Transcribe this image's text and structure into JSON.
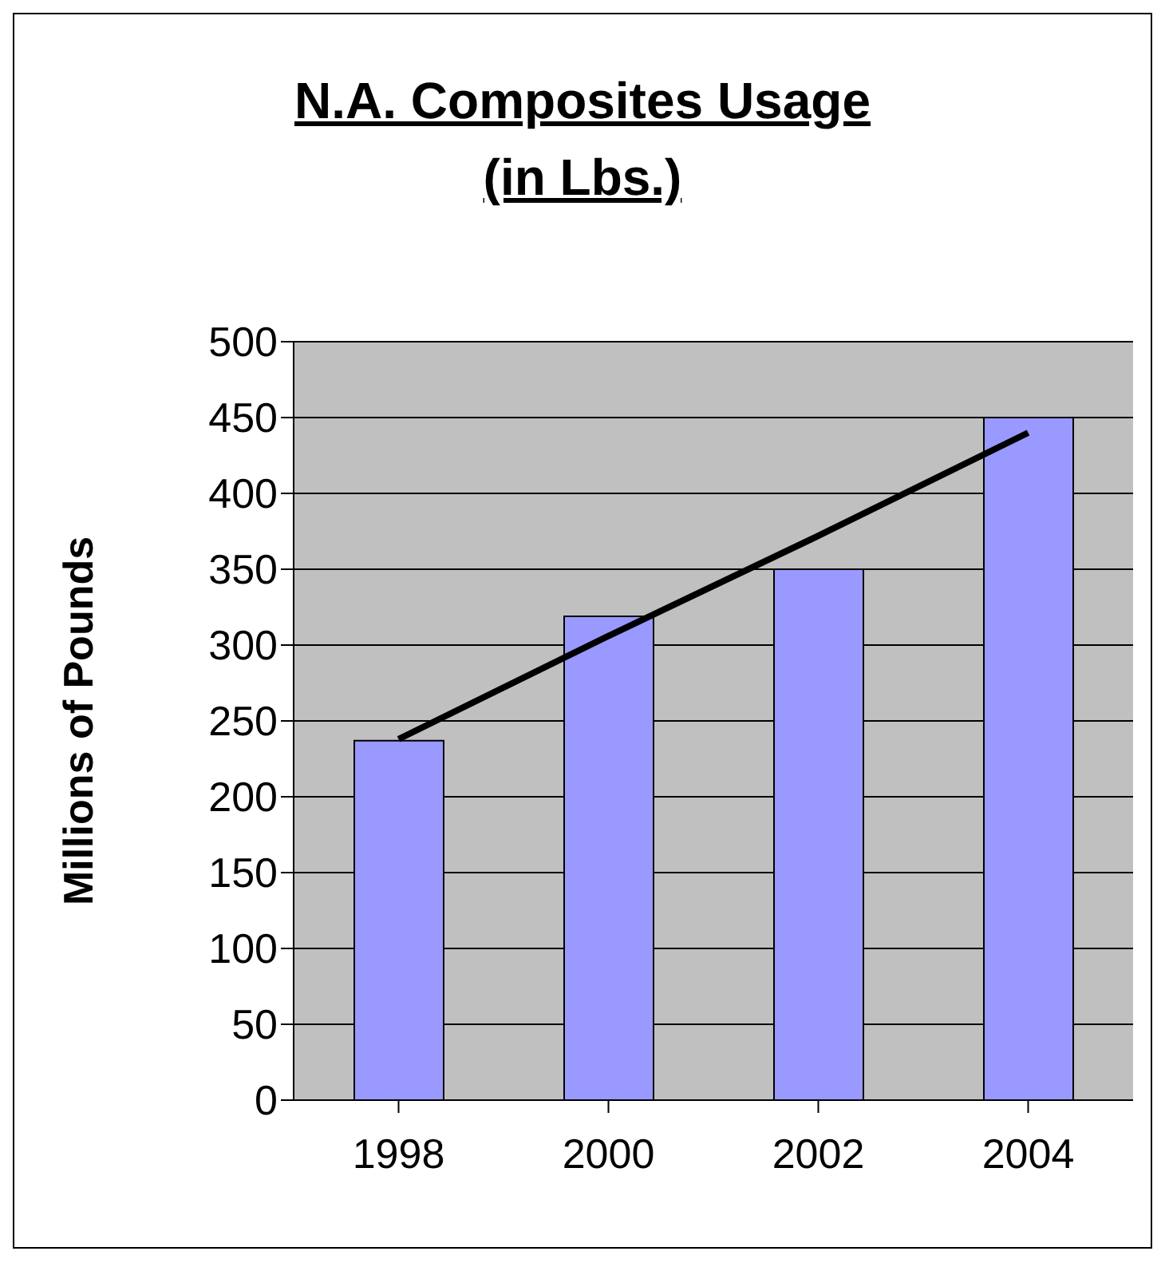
{
  "chart_data": {
    "type": "bar",
    "title": "N.A. Composites Usage\n(in Lbs.)",
    "ylabel": "Millions of Pounds",
    "categories": [
      "1998",
      "2000",
      "2002",
      "2004"
    ],
    "series": [
      {
        "color": "#9999ff",
        "values": [
          237,
          319,
          350,
          450
        ]
      },
      {
        "type": "line",
        "color": "#000000",
        "values": [
          238,
          306,
          372,
          440
        ],
        "marker": "none"
      }
    ],
    "ylim": [
      0,
      500
    ],
    "yticks": [
      0,
      50,
      100,
      150,
      200,
      250,
      300,
      350,
      400,
      450,
      500
    ],
    "grid": "y",
    "legend": false
  }
}
